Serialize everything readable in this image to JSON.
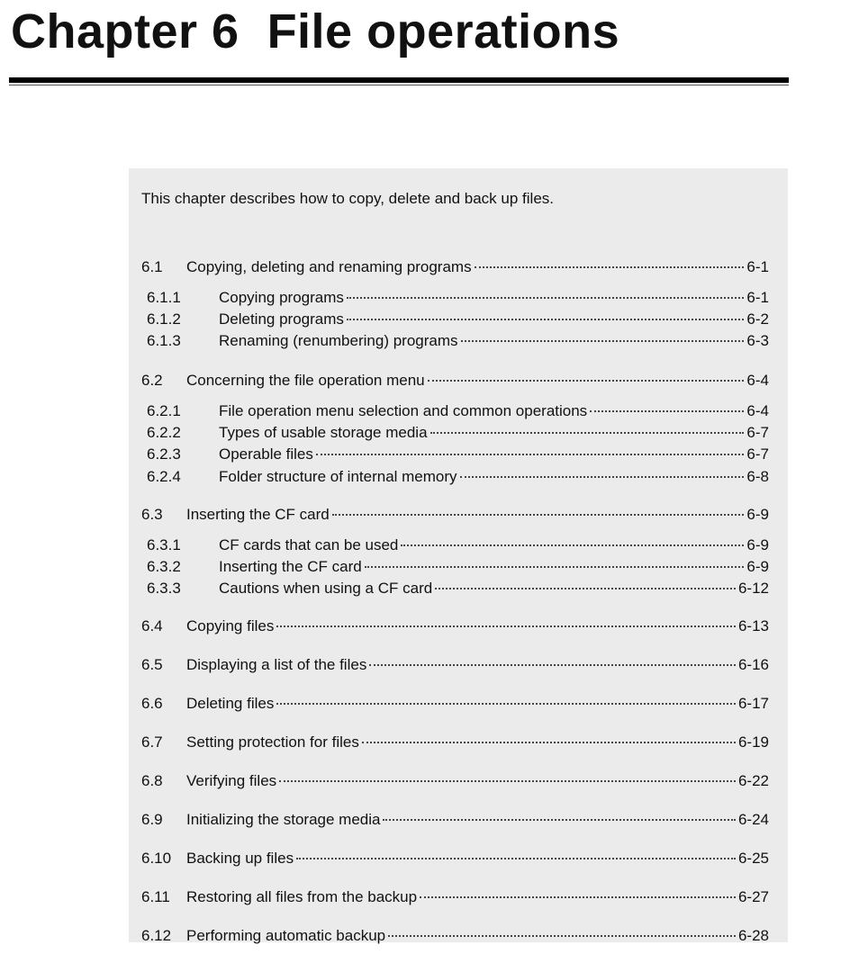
{
  "header": {
    "title": "Chapter 6  File operations"
  },
  "intro": "This chapter describes how to copy, delete and back up files.",
  "toc": [
    {
      "number": "6.1",
      "title": "Copying, deleting and renaming programs",
      "page": "6-1"
    },
    {
      "number": "6.1.1",
      "title": "Copying programs",
      "page": "6-1"
    },
    {
      "number": "6.1.2",
      "title": "Deleting programs",
      "page": "6-2"
    },
    {
      "number": "6.1.3",
      "title": "Renaming (renumbering) programs",
      "page": "6-3"
    },
    {
      "number": "6.2",
      "title": "Concerning the file operation menu",
      "page": "6-4"
    },
    {
      "number": "6.2.1",
      "title": "File operation menu selection and common operations",
      "page": "6-4"
    },
    {
      "number": "6.2.2",
      "title": "Types of usable storage media",
      "page": "6-7"
    },
    {
      "number": "6.2.3",
      "title": "Operable files",
      "page": "6-7"
    },
    {
      "number": "6.2.4",
      "title": "Folder structure of internal memory",
      "page": "6-8"
    },
    {
      "number": "6.3",
      "title": "Inserting the CF card",
      "page": "6-9"
    },
    {
      "number": "6.3.1",
      "title": "CF cards that can be used",
      "page": "6-9"
    },
    {
      "number": "6.3.2",
      "title": "Inserting the CF card",
      "page": "6-9"
    },
    {
      "number": "6.3.3",
      "title": "Cautions when using a CF card",
      "page": "6-12"
    },
    {
      "number": "6.4",
      "title": "Copying files",
      "page": "6-13"
    },
    {
      "number": "6.5",
      "title": "Displaying a list of the files",
      "page": "6-16"
    },
    {
      "number": "6.6",
      "title": "Deleting files",
      "page": "6-17"
    },
    {
      "number": "6.7",
      "title": "Setting protection for files",
      "page": "6-19"
    },
    {
      "number": "6.8",
      "title": "Verifying files",
      "page": "6-22"
    },
    {
      "number": "6.9",
      "title": "Initializing the storage media",
      "page": "6-24"
    },
    {
      "number": "6.10",
      "title": "Backing up files",
      "page": "6-25"
    },
    {
      "number": "6.11",
      "title": "Restoring all files from the backup",
      "page": "6-27"
    },
    {
      "number": "6.12",
      "title": "Performing automatic backup",
      "page": "6-28"
    }
  ]
}
